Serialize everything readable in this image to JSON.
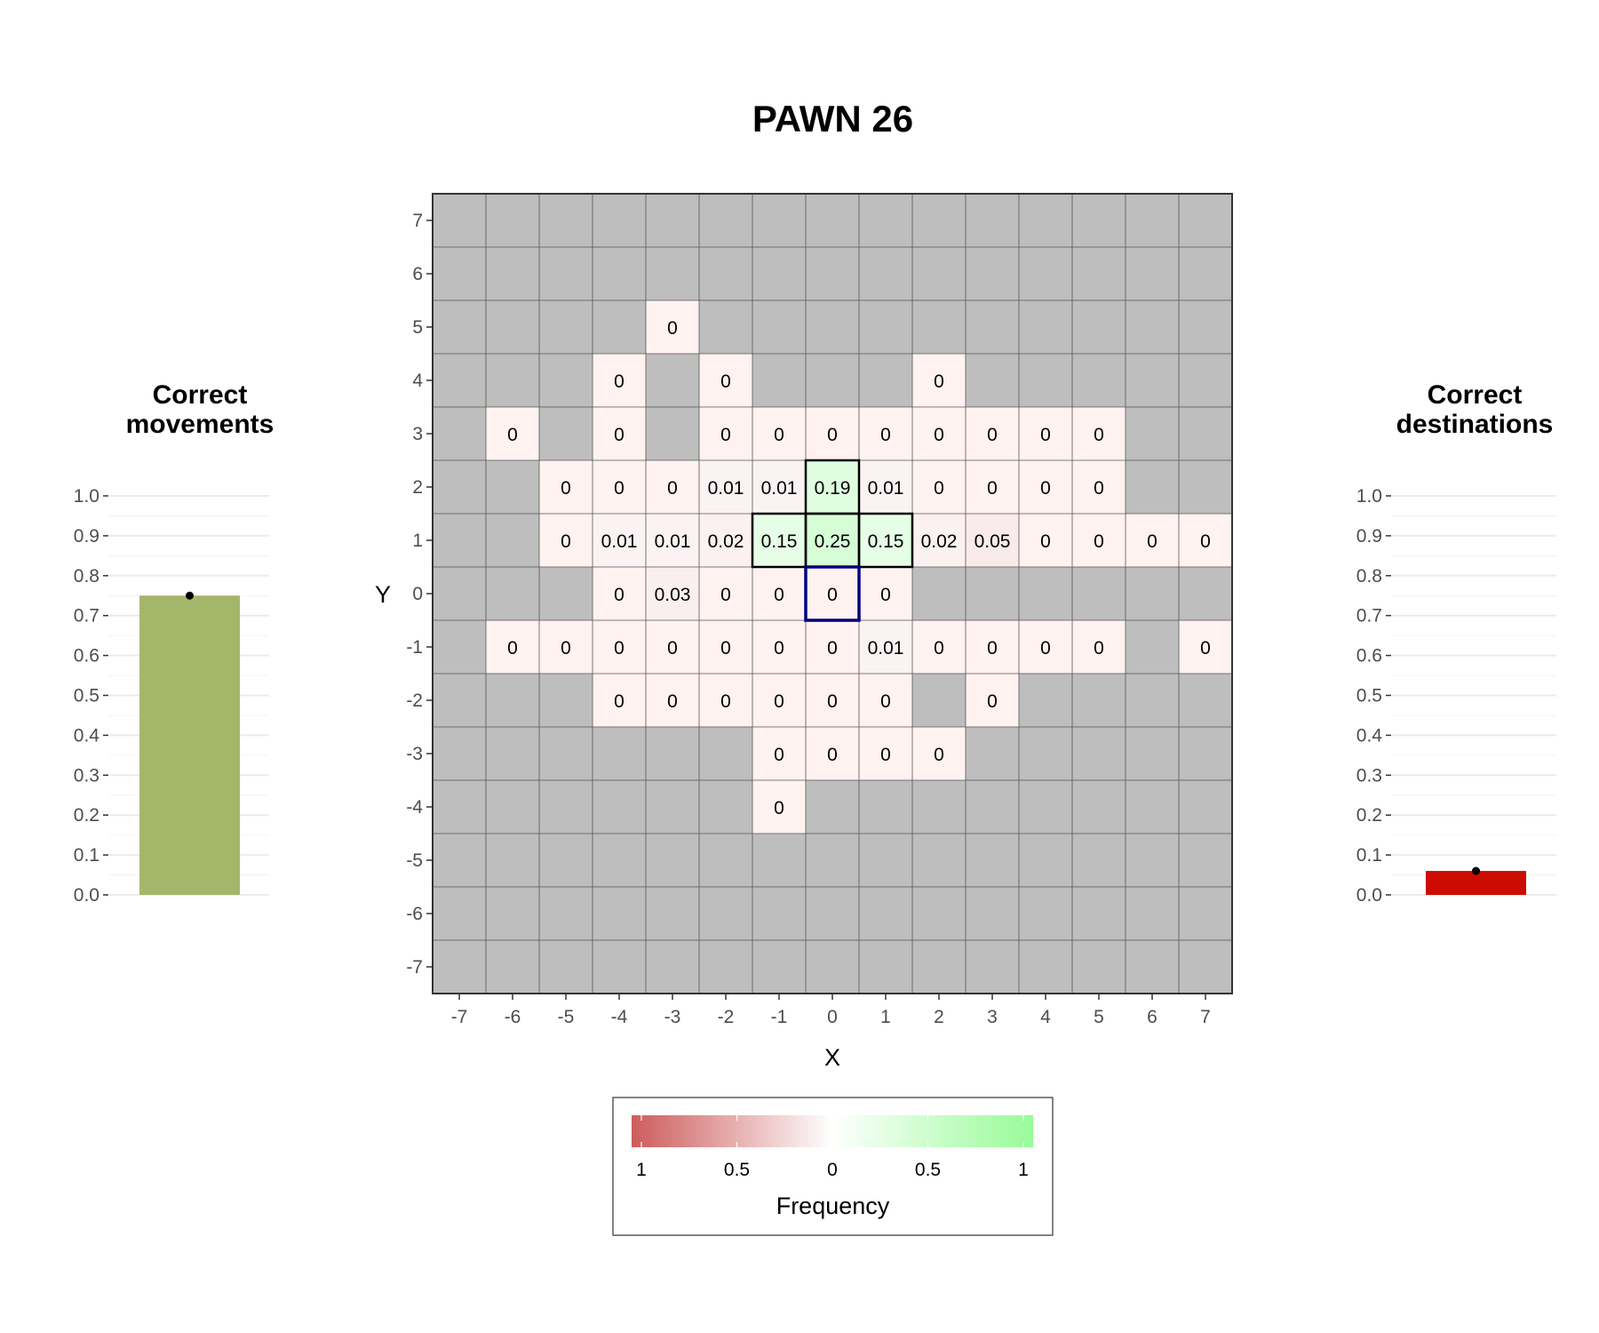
{
  "title": "PAWN 26",
  "chart_data": [
    {
      "type": "bar",
      "title": "Correct\nmovements",
      "categories": [
        ""
      ],
      "values": [
        0.75
      ],
      "color": "#a4b66a",
      "ylim": [
        0,
        1
      ],
      "yticks": [
        "0.0",
        "0.1",
        "0.2",
        "0.3",
        "0.4",
        "0.5",
        "0.6",
        "0.7",
        "0.8",
        "0.9",
        "1.0"
      ]
    },
    {
      "type": "heatmap",
      "xlabel": "X",
      "ylabel": "Y",
      "x_ticks": [
        "-7",
        "-6",
        "-5",
        "-4",
        "-3",
        "-2",
        "-1",
        "0",
        "1",
        "2",
        "3",
        "4",
        "5",
        "6",
        "7"
      ],
      "y_ticks": [
        "7",
        "6",
        "5",
        "4",
        "3",
        "2",
        "1",
        "0",
        "-1",
        "-2",
        "-3",
        "-4",
        "-5",
        "-6",
        "-7"
      ],
      "background_color": "#bebebe",
      "cells": [
        {
          "x": -3,
          "y": 5,
          "label": "0",
          "value": 0
        },
        {
          "x": -4,
          "y": 4,
          "label": "0",
          "value": 0
        },
        {
          "x": -2,
          "y": 4,
          "label": "0",
          "value": 0
        },
        {
          "x": 2,
          "y": 4,
          "label": "0",
          "value": 0
        },
        {
          "x": -6,
          "y": 3,
          "label": "0",
          "value": 0
        },
        {
          "x": -4,
          "y": 3,
          "label": "0",
          "value": 0
        },
        {
          "x": -2,
          "y": 3,
          "label": "0",
          "value": 0
        },
        {
          "x": -1,
          "y": 3,
          "label": "0",
          "value": 0
        },
        {
          "x": 0,
          "y": 3,
          "label": "0",
          "value": 0
        },
        {
          "x": 1,
          "y": 3,
          "label": "0",
          "value": 0
        },
        {
          "x": 2,
          "y": 3,
          "label": "0",
          "value": 0
        },
        {
          "x": 3,
          "y": 3,
          "label": "0",
          "value": 0
        },
        {
          "x": 4,
          "y": 3,
          "label": "0",
          "value": 0
        },
        {
          "x": 5,
          "y": 3,
          "label": "0",
          "value": 0
        },
        {
          "x": -5,
          "y": 2,
          "label": "0",
          "value": 0
        },
        {
          "x": -4,
          "y": 2,
          "label": "0",
          "value": 0
        },
        {
          "x": -3,
          "y": 2,
          "label": "0",
          "value": 0
        },
        {
          "x": -2,
          "y": 2,
          "label": "0.01",
          "value": -0.01
        },
        {
          "x": -1,
          "y": 2,
          "label": "0.01",
          "value": -0.01
        },
        {
          "x": 0,
          "y": 2,
          "label": "0.19",
          "value": 0.19
        },
        {
          "x": 1,
          "y": 2,
          "label": "0.01",
          "value": -0.01
        },
        {
          "x": 2,
          "y": 2,
          "label": "0",
          "value": 0
        },
        {
          "x": 3,
          "y": 2,
          "label": "0",
          "value": 0
        },
        {
          "x": 4,
          "y": 2,
          "label": "0",
          "value": 0
        },
        {
          "x": 5,
          "y": 2,
          "label": "0",
          "value": 0
        },
        {
          "x": -5,
          "y": 1,
          "label": "0",
          "value": 0
        },
        {
          "x": -4,
          "y": 1,
          "label": "0.01",
          "value": -0.01
        },
        {
          "x": -3,
          "y": 1,
          "label": "0.01",
          "value": -0.01
        },
        {
          "x": -2,
          "y": 1,
          "label": "0.02",
          "value": -0.02
        },
        {
          "x": -1,
          "y": 1,
          "label": "0.15",
          "value": 0.15
        },
        {
          "x": 0,
          "y": 1,
          "label": "0.25",
          "value": 0.25
        },
        {
          "x": 1,
          "y": 1,
          "label": "0.15",
          "value": 0.15
        },
        {
          "x": 2,
          "y": 1,
          "label": "0.02",
          "value": -0.02
        },
        {
          "x": 3,
          "y": 1,
          "label": "0.05",
          "value": -0.05
        },
        {
          "x": 4,
          "y": 1,
          "label": "0",
          "value": 0
        },
        {
          "x": 5,
          "y": 1,
          "label": "0",
          "value": 0
        },
        {
          "x": 6,
          "y": 1,
          "label": "0",
          "value": 0
        },
        {
          "x": 7,
          "y": 1,
          "label": "0",
          "value": 0
        },
        {
          "x": -4,
          "y": 0,
          "label": "0",
          "value": 0
        },
        {
          "x": -3,
          "y": 0,
          "label": "0.03",
          "value": -0.03
        },
        {
          "x": -2,
          "y": 0,
          "label": "0",
          "value": 0
        },
        {
          "x": -1,
          "y": 0,
          "label": "0",
          "value": 0
        },
        {
          "x": 0,
          "y": 0,
          "label": "0",
          "value": 0
        },
        {
          "x": 1,
          "y": 0,
          "label": "0",
          "value": 0
        },
        {
          "x": -6,
          "y": -1,
          "label": "0",
          "value": 0
        },
        {
          "x": -5,
          "y": -1,
          "label": "0",
          "value": 0
        },
        {
          "x": -4,
          "y": -1,
          "label": "0",
          "value": 0
        },
        {
          "x": -3,
          "y": -1,
          "label": "0",
          "value": 0
        },
        {
          "x": -2,
          "y": -1,
          "label": "0",
          "value": 0
        },
        {
          "x": -1,
          "y": -1,
          "label": "0",
          "value": 0
        },
        {
          "x": 0,
          "y": -1,
          "label": "0",
          "value": 0
        },
        {
          "x": 1,
          "y": -1,
          "label": "0.01",
          "value": -0.01
        },
        {
          "x": 2,
          "y": -1,
          "label": "0",
          "value": 0
        },
        {
          "x": 3,
          "y": -1,
          "label": "0",
          "value": 0
        },
        {
          "x": 4,
          "y": -1,
          "label": "0",
          "value": 0
        },
        {
          "x": 5,
          "y": -1,
          "label": "0",
          "value": 0
        },
        {
          "x": 7,
          "y": -1,
          "label": "0",
          "value": 0
        },
        {
          "x": -4,
          "y": -2,
          "label": "0",
          "value": 0
        },
        {
          "x": -3,
          "y": -2,
          "label": "0",
          "value": 0
        },
        {
          "x": -2,
          "y": -2,
          "label": "0",
          "value": 0
        },
        {
          "x": -1,
          "y": -2,
          "label": "0",
          "value": 0
        },
        {
          "x": 0,
          "y": -2,
          "label": "0",
          "value": 0
        },
        {
          "x": 1,
          "y": -2,
          "label": "0",
          "value": 0
        },
        {
          "x": 3,
          "y": -2,
          "label": "0",
          "value": 0
        },
        {
          "x": -1,
          "y": -3,
          "label": "0",
          "value": 0
        },
        {
          "x": 0,
          "y": -3,
          "label": "0",
          "value": 0
        },
        {
          "x": 1,
          "y": -3,
          "label": "0",
          "value": 0
        },
        {
          "x": 2,
          "y": -3,
          "label": "0",
          "value": 0
        },
        {
          "x": -1,
          "y": -4,
          "label": "0",
          "value": 0
        }
      ],
      "correct_moves": [
        [
          0,
          2
        ],
        [
          -1,
          1
        ],
        [
          0,
          1
        ],
        [
          1,
          1
        ]
      ],
      "origin": [
        0,
        0
      ],
      "legend": {
        "title": "Frequency",
        "tick_labels": [
          "1",
          "0.5",
          "0",
          "0.5",
          "1"
        ],
        "low_color": "#cd5c5c",
        "mid_color": "#ffffff",
        "high_color": "#98fb98"
      }
    },
    {
      "type": "bar",
      "title": "Correct\ndestinations",
      "categories": [
        ""
      ],
      "values": [
        0.06
      ],
      "color": "#cc0c00",
      "ylim": [
        0,
        1
      ],
      "yticks": [
        "0.0",
        "0.1",
        "0.2",
        "0.3",
        "0.4",
        "0.5",
        "0.6",
        "0.7",
        "0.8",
        "0.9",
        "1.0"
      ]
    }
  ]
}
